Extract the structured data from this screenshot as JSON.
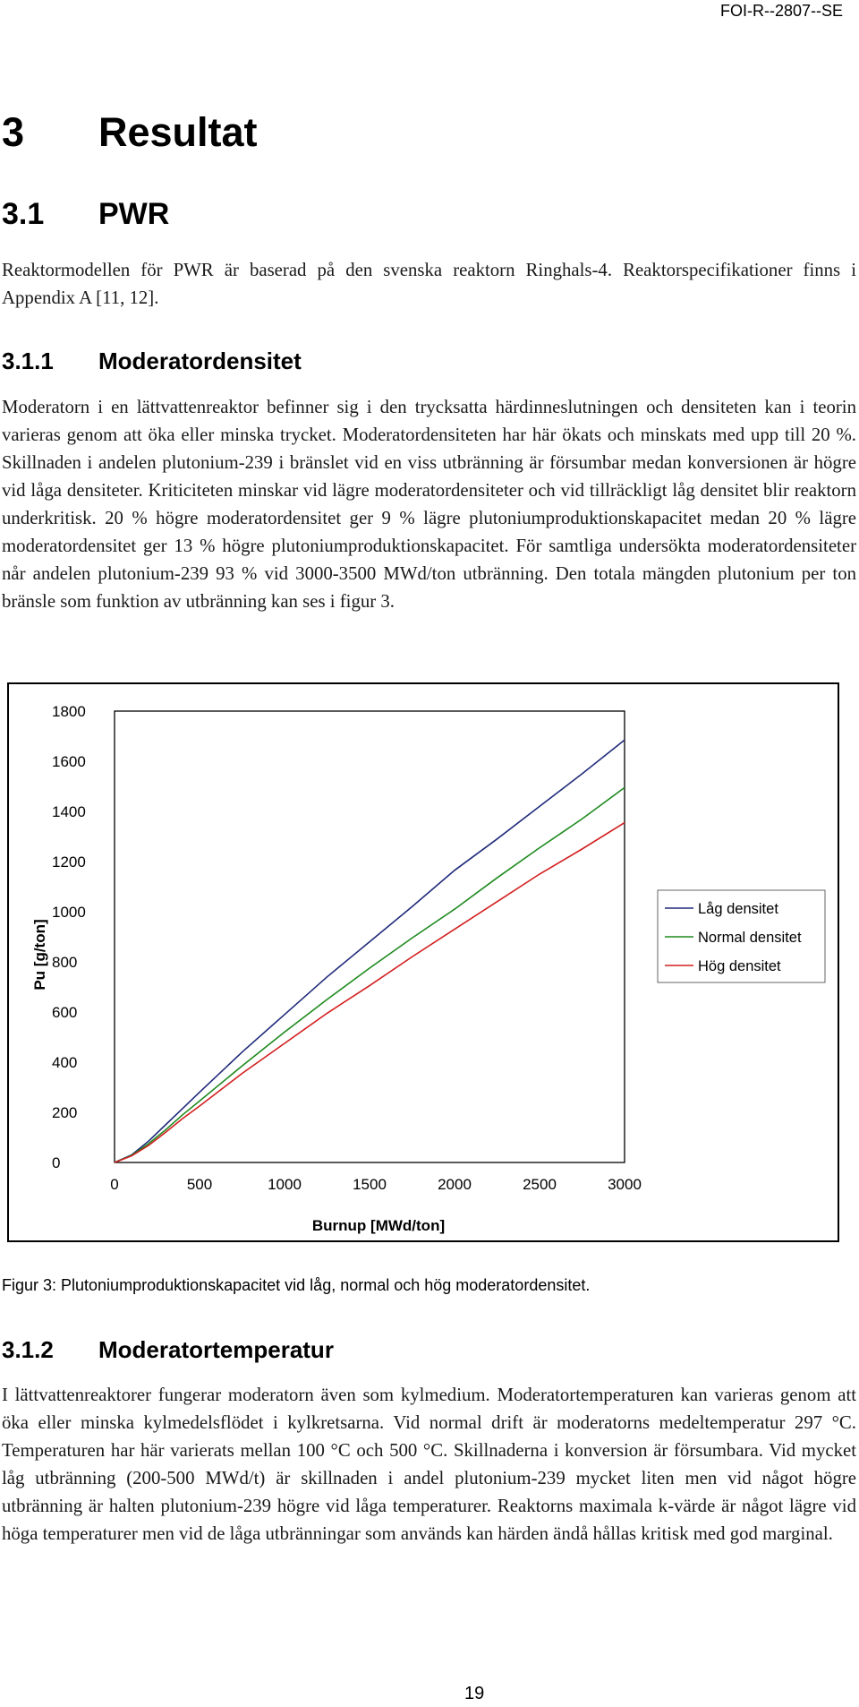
{
  "header": {
    "report_id": "FOI-R--2807--SE"
  },
  "section": {
    "number": "3",
    "title": "Resultat"
  },
  "subsection": {
    "number": "3.1",
    "title": "PWR"
  },
  "intro_paragraph": "Reaktormodellen för PWR är baserad på den svenska reaktorn Ringhals-4. Reaktorspecifikationer finns i Appendix A [11, 12].",
  "sub1": {
    "number": "3.1.1",
    "title": "Moderatordensitet",
    "paragraph": "Moderatorn i en lättvattenreaktor befinner sig i den trycksatta härdinneslutningen och densiteten kan i teorin varieras genom att öka eller minska trycket. Moderatordensiteten har här ökats och minskats med upp till 20 %. Skillnaden i andelen plutonium-239 i bränslet vid en viss utbränning är försumbar medan konversionen är högre vid låga densiteter. Kriticiteten minskar vid lägre moderatordensiteter och vid tillräckligt låg densitet blir reaktorn underkritisk. 20 % högre moderatordensitet ger 9 % lägre plutoniumproduktionskapacitet medan 20 % lägre moderatordensitet ger 13 % högre plutoniumproduktionskapacitet. För samtliga undersökta moderatordensiteter når andelen plutonium-239 93 % vid 3000-3500 MWd/ton utbränning. Den totala mängden plutonium per ton bränsle som funktion av utbränning kan ses i figur 3."
  },
  "chart_data": {
    "type": "line",
    "title": "",
    "xlabel": "Burnup [MWd/ton]",
    "ylabel": "Pu [g/ton]",
    "xlim": [
      0,
      3000
    ],
    "ylim": [
      0,
      1800
    ],
    "x_ticks": [
      0,
      500,
      1000,
      1500,
      2000,
      2500,
      3000
    ],
    "y_ticks": [
      0,
      200,
      400,
      600,
      800,
      1000,
      1200,
      1400,
      1600,
      1800
    ],
    "grid": false,
    "legend_position": "right",
    "x": [
      0,
      100,
      200,
      300,
      400,
      500,
      750,
      1000,
      1250,
      1500,
      1750,
      2000,
      2250,
      2500,
      2750,
      3000
    ],
    "series": [
      {
        "name": "Låg densitet",
        "color": "#1f2a7a",
        "values": [
          0,
          30,
          85,
          150,
          215,
          280,
          440,
          590,
          740,
          880,
          1020,
          1165,
          1290,
          1420,
          1550,
          1685
        ]
      },
      {
        "name": "Normal densitet",
        "color": "#1e8a1e",
        "values": [
          0,
          28,
          75,
          130,
          190,
          245,
          385,
          520,
          650,
          775,
          895,
          1010,
          1135,
          1255,
          1370,
          1495
        ]
      },
      {
        "name": "Hög densitet",
        "color": "#d21e1e",
        "values": [
          0,
          26,
          68,
          120,
          175,
          225,
          355,
          475,
          595,
          705,
          820,
          930,
          1040,
          1150,
          1250,
          1355
        ]
      }
    ]
  },
  "figure": {
    "caption": "Figur 3: Plutoniumproduktionskapacitet vid låg, normal och hög moderatordensitet."
  },
  "sub2": {
    "number": "3.1.2",
    "title": "Moderatortemperatur",
    "paragraph": "I lättvattenreaktorer fungerar moderatorn även som kylmedium. Moderatortemperaturen kan varieras genom att öka eller minska kylmedelsflödet i kylkretsarna. Vid normal drift är moderatorns medeltemperatur 297 °C. Temperaturen har här varierats mellan 100 °C och 500 °C. Skillnaderna i konversion är försumbara. Vid mycket låg utbränning (200-500 MWd/t) är skillnaden i andel plutonium-239 mycket liten men vid något högre utbränning är halten plutonium-239 högre vid låga temperaturer. Reaktorns maximala k-värde är något lägre vid höga temperaturer men vid de låga utbränningar som används kan härden ändå hållas kritisk med god marginal."
  },
  "footer": {
    "page_number": "19"
  }
}
